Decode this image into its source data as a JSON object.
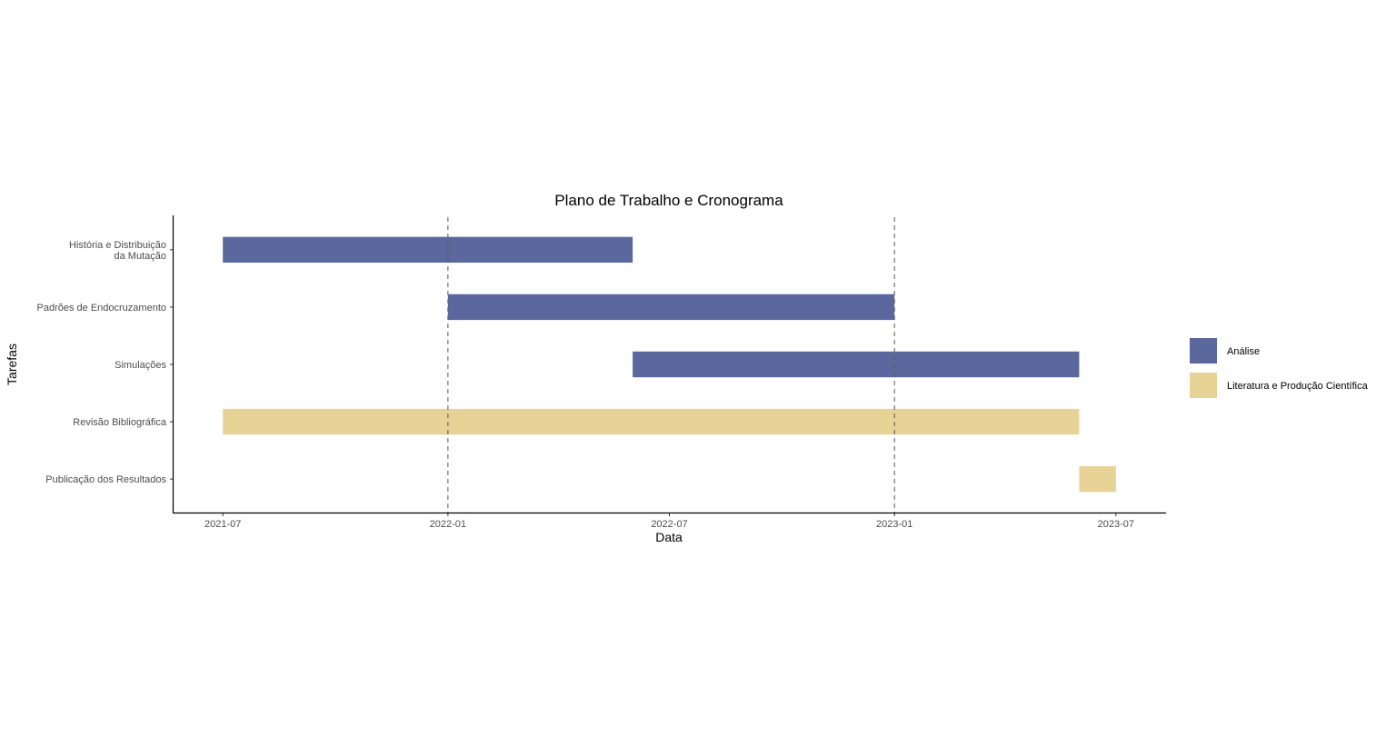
{
  "chart_data": {
    "type": "gantt",
    "title": "Plano de Trabalho e Cronograma",
    "xlabel": "Data",
    "ylabel": "Tarefas",
    "x_ticks": [
      "2021-07",
      "2022-01",
      "2022-07",
      "2023-01",
      "2023-07"
    ],
    "xlim": [
      "2021-05-21",
      "2023-08-11"
    ],
    "reference_lines": [
      "2022-01",
      "2023-01"
    ],
    "tasks": [
      {
        "label_lines": [
          "História e Distribuição",
          "da Mutação"
        ],
        "start": "2021-07",
        "end": "2022-06",
        "group": "Análise"
      },
      {
        "label_lines": [
          "Padrões de Endocruzamento"
        ],
        "start": "2022-01",
        "end": "2023-01",
        "group": "Análise"
      },
      {
        "label_lines": [
          "Simulações"
        ],
        "start": "2022-06",
        "end": "2023-06",
        "group": "Análise"
      },
      {
        "label_lines": [
          "Revisão Bibliográfica"
        ],
        "start": "2021-07",
        "end": "2023-06",
        "group": "Literatura e Produção Científica"
      },
      {
        "label_lines": [
          "Publicação dos Resultados"
        ],
        "start": "2023-06",
        "end": "2023-07",
        "group": "Literatura e Produção Científica"
      }
    ],
    "legend": [
      {
        "name": "Análise",
        "color": "#5A689D"
      },
      {
        "name": "Literatura e Produção Científica",
        "color": "#E8D397"
      }
    ],
    "legend_position": "right",
    "grid": false
  }
}
